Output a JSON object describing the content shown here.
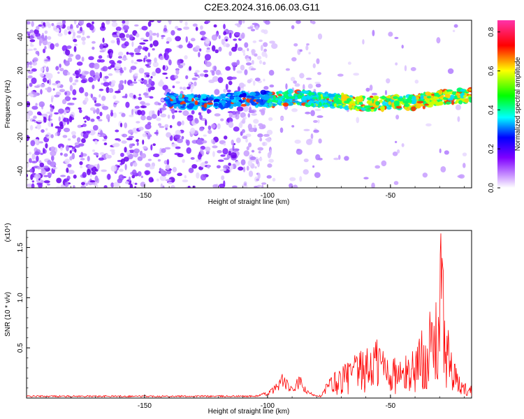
{
  "title": "C2E3.2024.316.06.03.G11",
  "chart_data": [
    {
      "type": "heatmap",
      "xlabel": "Height of straight line (km)",
      "ylabel": "Frequency (Hz)",
      "xlim": [
        -198,
        -17
      ],
      "ylim": [
        -50,
        50
      ],
      "xticks": [
        -150,
        -100,
        -50
      ],
      "yticks": [
        -40,
        -20,
        0,
        20,
        40
      ],
      "colorbar": {
        "label": "Normalized spectral amplitude",
        "range": [
          0.0,
          0.86
        ],
        "ticks": [
          0.0,
          0.2,
          0.4,
          0.6,
          0.8
        ],
        "colors": [
          "#ffffff",
          "#cc99ff",
          "#7f00ff",
          "#0000ff",
          "#00ffff",
          "#00ff00",
          "#ffff00",
          "#ff0000",
          "#ff33aa"
        ]
      },
      "signal_ridge": {
        "x": [
          -140,
          -130,
          -120,
          -110,
          -100,
          -95,
          -90,
          -80,
          -70,
          -60,
          -50,
          -40,
          -30,
          -20
        ],
        "frequency": [
          2,
          1,
          1,
          3,
          3,
          3,
          4,
          3,
          2,
          0,
          1,
          1,
          4,
          5
        ]
      }
    },
    {
      "type": "line",
      "xlabel": "Height of straight line (km)",
      "ylabel": "SNR (10 * v/v)",
      "y_multiplier": "(x10⁴)",
      "xlim": [
        -198,
        -17
      ],
      "ylim": [
        0,
        1.67
      ],
      "xticks": [
        -150,
        -100,
        -50
      ],
      "yticks": [
        0.5,
        1.0,
        1.5
      ],
      "series_color": "#ff0000",
      "series": [
        {
          "x": [
            -198,
            -180,
            -160,
            -140,
            -120,
            -105,
            -100,
            -97,
            -94,
            -90,
            -87,
            -84,
            -80,
            -78,
            -76,
            -74,
            -70,
            -65,
            -60,
            -55,
            -50,
            -45,
            -40,
            -35,
            -31,
            -29.5,
            -28,
            -25,
            -22,
            -18
          ],
          "y": [
            0.02,
            0.02,
            0.02,
            0.02,
            0.02,
            0.02,
            0.05,
            0.1,
            0.2,
            0.08,
            0.18,
            0.06,
            0.03,
            0.02,
            0.15,
            0.22,
            0.3,
            0.4,
            0.45,
            0.6,
            0.4,
            0.35,
            0.5,
            0.75,
            0.9,
            1.64,
            0.95,
            0.4,
            0.2,
            0.12
          ]
        }
      ]
    }
  ]
}
